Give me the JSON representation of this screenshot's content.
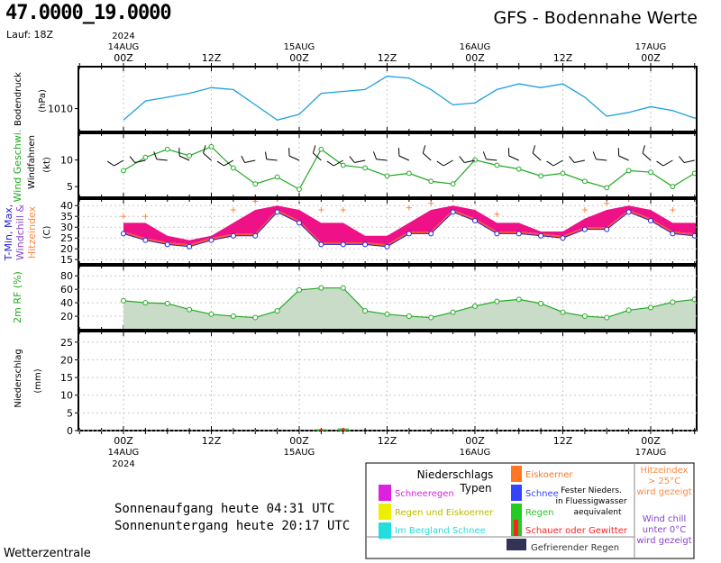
{
  "header": {
    "coords": "47.0000_19.0000",
    "run_label": "Lauf: 18Z",
    "title": "GFS - Bodennahe Werte"
  },
  "time_axis": {
    "year": "2024",
    "hours_top": [
      "00Z",
      "12Z",
      "00Z",
      "12Z",
      "00Z",
      "12Z",
      "00Z"
    ],
    "dates_top": [
      "14AUG",
      "15AUG",
      "16AUG",
      "17AUG"
    ],
    "hours_bottom": [
      "00Z",
      "12Z",
      "00Z",
      "12Z",
      "00Z",
      "12Z",
      "00Z"
    ],
    "dates_bottom": [
      "14AUG",
      "15AUG",
      "16AUG",
      "17AUG"
    ]
  },
  "colors": {
    "pressure": "#1ea0dc",
    "green": "#22aa22",
    "tmax_fill": "#ee1188",
    "tmin_fill": "#ff5533",
    "blue_marker": "#2222cc",
    "heat": "#ff8844",
    "rh_fill": "#c8dcc8",
    "purple_label": "#8844cc"
  },
  "panels": {
    "pressure": {
      "ylabel": "Bodendruck",
      "unit": "(hPa)",
      "ticks": [
        "1010"
      ]
    },
    "wind": {
      "ylabel": "Windfahnen",
      "ylabel2": "Wind Geschwi.",
      "unit": "(kt)",
      "ticks": [
        "10",
        "5"
      ]
    },
    "temp": {
      "ylabel_a": "T-Min, Max,",
      "ylabel_b": "Windchill &",
      "ylabel_c": "Hitzeindex",
      "unit": "(C)",
      "ticks": [
        "40",
        "35",
        "30",
        "25",
        "20",
        "15"
      ]
    },
    "rh": {
      "ylabel": "2m RF (%)",
      "ticks": [
        "80",
        "60",
        "40",
        "20"
      ]
    },
    "precip": {
      "ylabel": "Niederschlag",
      "unit": "(mm)",
      "ticks": [
        "25",
        "20",
        "15",
        "10",
        "5",
        "0"
      ]
    }
  },
  "chart_data": [
    {
      "type": "line",
      "title": "Bodendruck",
      "ylabel": "(hPa)",
      "x_hours": [
        0,
        3,
        6,
        9,
        12,
        15,
        18,
        21,
        24,
        27,
        30,
        33,
        36,
        39,
        42,
        45,
        48,
        51,
        54,
        57,
        60,
        63,
        66,
        69,
        72,
        75,
        78,
        81,
        84
      ],
      "series": [
        {
          "values": [
            1007,
            1012,
            1013,
            1014,
            1015.5,
            1015,
            1011,
            1007,
            1008.5,
            1014,
            1014.5,
            1015,
            1018.5,
            1018,
            1015,
            1011,
            1011.5,
            1015,
            1016.5,
            1015.5,
            1016.5,
            1013,
            1008,
            1009,
            1010.5,
            1009.5,
            1007.5,
            1008.5,
            1009
          ]
        }
      ],
      "ylim": [
        1004,
        1021
      ]
    },
    {
      "type": "line",
      "title": "Wind Geschwi.",
      "ylabel": "(kt)",
      "x_hours": [
        0,
        3,
        6,
        9,
        12,
        15,
        18,
        21,
        24,
        27,
        30,
        33,
        36,
        39,
        42,
        45,
        48,
        51,
        54,
        57,
        60,
        63,
        66,
        69,
        72,
        75,
        78,
        81,
        84
      ],
      "series": [
        {
          "values": [
            8,
            10.5,
            12,
            10.8,
            12.5,
            8.5,
            5.5,
            6.8,
            4.5,
            12,
            9,
            8.5,
            7,
            7.5,
            6,
            5.5,
            10,
            9,
            8.3,
            7,
            7.5,
            6,
            4.8,
            8,
            7.7,
            5,
            7.5,
            6,
            6.3
          ]
        }
      ],
      "barbs_kt": [
        10,
        10,
        10,
        10,
        10,
        10,
        5,
        5,
        10,
        10,
        10,
        10,
        10,
        10,
        10,
        10,
        10,
        10,
        10,
        10,
        10,
        10,
        10,
        10,
        10,
        10,
        10,
        10,
        10
      ],
      "ylim": [
        3,
        15
      ]
    },
    {
      "type": "area",
      "title": "T-Min, Max, Windchill & Hitzeindex",
      "ylabel": "(C)",
      "x_hours": [
        0,
        3,
        6,
        9,
        12,
        15,
        18,
        21,
        24,
        27,
        30,
        33,
        36,
        39,
        42,
        45,
        48,
        51,
        54,
        57,
        60,
        63,
        66,
        69,
        72,
        75,
        78,
        81,
        84
      ],
      "series": [
        {
          "name": "T-Max",
          "values": [
            32,
            32,
            26,
            24,
            26,
            32,
            38,
            40,
            38,
            32,
            32,
            26,
            26,
            32,
            38,
            40,
            38,
            32,
            32,
            28,
            28,
            34,
            38,
            40,
            38,
            32,
            32,
            26,
            28
          ]
        },
        {
          "name": "T-Min",
          "values": [
            27,
            24,
            22,
            21,
            24,
            26,
            26,
            37,
            32,
            22,
            22,
            22,
            21,
            27,
            27,
            37,
            33,
            27,
            27,
            26,
            25,
            29,
            29,
            37,
            33,
            27,
            26,
            25,
            23
          ]
        },
        {
          "name": "Hitzeindex",
          "values": [
            35,
            35,
            null,
            null,
            null,
            38,
            42,
            43,
            43,
            38,
            38,
            null,
            null,
            39,
            41,
            43,
            43,
            36,
            null,
            null,
            null,
            38,
            41,
            43,
            45,
            38,
            null,
            null,
            29
          ]
        }
      ],
      "ylim": [
        13,
        43
      ]
    },
    {
      "type": "area",
      "title": "2m RF",
      "ylabel": "(%)",
      "x_hours": [
        0,
        3,
        6,
        9,
        12,
        15,
        18,
        21,
        24,
        27,
        30,
        33,
        36,
        39,
        42,
        45,
        48,
        51,
        54,
        57,
        60,
        63,
        66,
        69,
        72,
        75,
        78,
        81,
        84
      ],
      "series": [
        {
          "values": [
            43,
            40,
            39,
            30,
            23,
            20,
            18,
            28,
            59,
            62,
            62,
            28,
            23,
            20,
            18,
            26,
            35,
            42,
            45,
            39,
            26,
            20,
            18,
            29,
            33,
            41,
            45,
            38,
            null
          ]
        }
      ],
      "ylim": [
        0,
        95
      ]
    },
    {
      "type": "bar",
      "title": "Niederschlag",
      "ylabel": "(mm)",
      "x_hours": [
        27,
        30
      ],
      "values": [
        0.4,
        0.6
      ],
      "ylim": [
        0,
        28
      ]
    }
  ],
  "legend": {
    "title_a": "Niederschlags",
    "title_b": "Typen",
    "items": {
      "schneeregen": "Schneeregen",
      "regen_eis": "Regen und Eiskoerner",
      "bergland": "Im Bergland Schnee",
      "eiskoerner": "Eiskoerner",
      "schnee": "Schnee",
      "fester_a": "Fester Nieders.",
      "fester_b": "in Fluessigwasser",
      "fester_c": "aequivalent",
      "regen": "Regen",
      "schauer": "Schauer oder Gewitter",
      "gefrierender": "Gefrierender Regen"
    },
    "heat_a": "Hitzeindex",
    "heat_b": "> 25°C",
    "heat_c": "wird gezeigt",
    "chill_a": "Wind chill",
    "chill_b": "unter 0°C",
    "chill_c": "wird gezeigt",
    "swatches": {
      "schneeregen": "#dd22dd",
      "regen_eis": "#eeee00",
      "bergland": "#22dddd",
      "eiskoerner": "#ff7722",
      "schnee": "#3344ff",
      "regen": "#22cc22",
      "schauer": "#ff2222",
      "gefrierender": "#333355"
    }
  },
  "sun": {
    "sunrise": "Sonnenaufgang heute 04:31 UTC",
    "sunset": "Sonnenuntergang heute 20:17 UTC"
  },
  "footer": {
    "credit": "Wetterzentrale"
  }
}
